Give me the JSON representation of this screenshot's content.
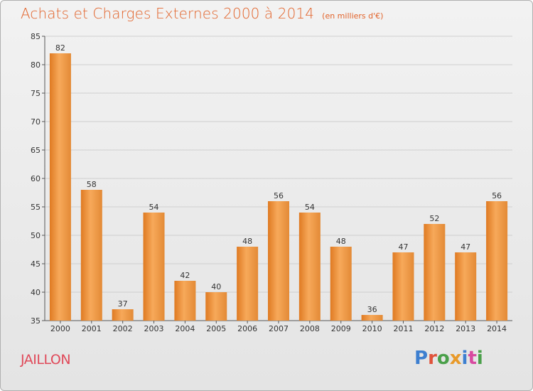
{
  "header": {
    "title": "Achats et Charges Externes 2000 à 2014",
    "subtitle": "(en milliers d'€)"
  },
  "footer": {
    "commune": "JAILLON",
    "logo_text": "Proxiti"
  },
  "colors": {
    "title": "#e2632a",
    "commune": "#e04a5a",
    "bar_light": "#f7a95a",
    "bar_dark": "#df7a22",
    "logo": [
      "#3d7fd0",
      "#e0523a",
      "#4aa04a",
      "#e89a2a",
      "#3d7fd0",
      "#d84aa0",
      "#4aa04a"
    ]
  },
  "chart_data": {
    "type": "bar",
    "categories": [
      "2000",
      "2001",
      "2002",
      "2003",
      "2004",
      "2005",
      "2006",
      "2007",
      "2008",
      "2009",
      "2010",
      "2011",
      "2012",
      "2013",
      "2014"
    ],
    "values": [
      82,
      58,
      37,
      54,
      42,
      40,
      48,
      56,
      54,
      48,
      36,
      47,
      52,
      47,
      56
    ],
    "ylim": [
      35,
      85
    ],
    "yticks": [
      35,
      40,
      45,
      50,
      55,
      60,
      65,
      70,
      75,
      80,
      85
    ],
    "grid": true
  }
}
